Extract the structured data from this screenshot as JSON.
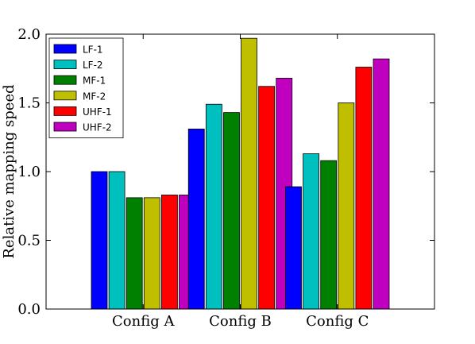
{
  "chart_data": {
    "type": "bar",
    "title": "",
    "xlabel": "",
    "ylabel": "Relative mapping speed",
    "ylim": [
      0,
      2.0
    ],
    "yticks": [
      "0.0",
      "0.5",
      "1.0",
      "1.5",
      "2.0"
    ],
    "categories": [
      "Config A",
      "Config B",
      "Config C"
    ],
    "grid": false,
    "legend_position": "top-left",
    "series": [
      {
        "name": "LF-1",
        "color": "#0000ff",
        "values": [
          1.0,
          1.31,
          0.89
        ]
      },
      {
        "name": "LF-2",
        "color": "#00bfbf",
        "values": [
          1.0,
          1.49,
          1.13
        ]
      },
      {
        "name": "MF-1",
        "color": "#008000",
        "values": [
          0.81,
          1.43,
          1.08
        ]
      },
      {
        "name": "MF-2",
        "color": "#bfbf00",
        "values": [
          0.81,
          1.97,
          1.5
        ]
      },
      {
        "name": "UHF-1",
        "color": "#ff0000",
        "values": [
          0.83,
          1.62,
          1.76
        ]
      },
      {
        "name": "UHF-2",
        "color": "#bf00bf",
        "values": [
          0.83,
          1.68,
          1.82
        ]
      }
    ]
  }
}
